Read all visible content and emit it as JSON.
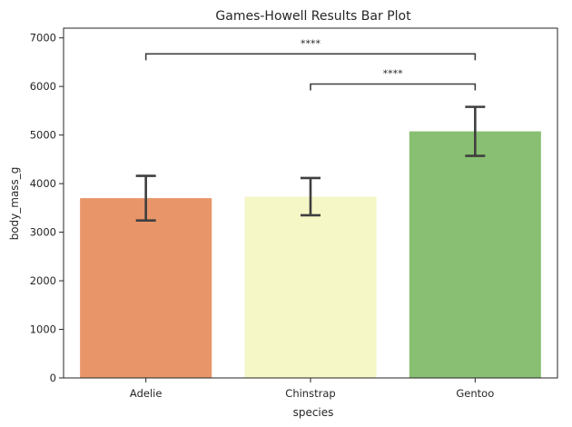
{
  "chart_data": {
    "type": "bar",
    "title": "Games-Howell Results Bar Plot",
    "xlabel": "species",
    "ylabel": "body_mass_g",
    "categories": [
      "Adelie",
      "Chinstrap",
      "Gentoo"
    ],
    "values": [
      3701,
      3733,
      5076
    ],
    "error_low": [
      3242,
      3348,
      4572
    ],
    "error_high": [
      4160,
      4116,
      5580
    ],
    "colors": [
      "#e8956a",
      "#f5f7c6",
      "#88bf72"
    ],
    "ylim": [
      0,
      7200
    ],
    "yticks": [
      0,
      1000,
      2000,
      3000,
      4000,
      5000,
      6000,
      7000
    ],
    "grid": false,
    "annotations": [
      {
        "from": "Adelie",
        "to": "Gentoo",
        "y": 6670,
        "text": "****"
      },
      {
        "from": "Chinstrap",
        "to": "Gentoo",
        "y": 6050,
        "text": "****"
      }
    ]
  }
}
